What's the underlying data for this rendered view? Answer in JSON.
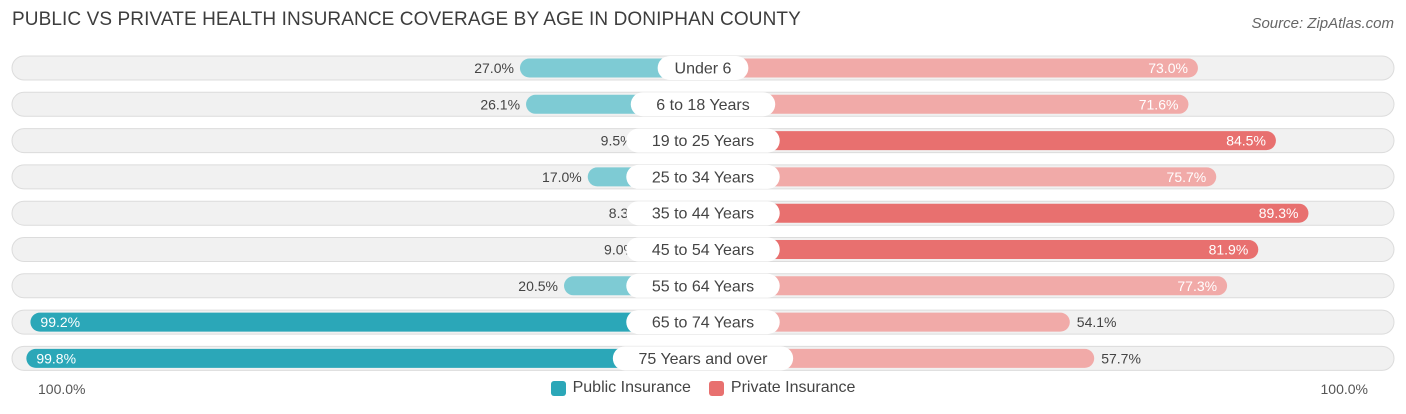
{
  "header": {
    "title": "PUBLIC VS PRIVATE HEALTH INSURANCE COVERAGE BY AGE IN DONIPHAN COUNTY",
    "source": "Source: ZipAtlas.com"
  },
  "colors": {
    "public": "#2ba7b8",
    "public_light": "#7ecbd4",
    "private": "#e8706f",
    "private_light": "#f1aaa8",
    "track": "#f1f1f1",
    "track_border": "#dcdcdc"
  },
  "chart_data": {
    "type": "bar",
    "orientation": "horizontal-diverging",
    "title": "PUBLIC VS PRIVATE HEALTH INSURANCE COVERAGE BY AGE IN DONIPHAN COUNTY",
    "categories": [
      "Under 6",
      "6 to 18 Years",
      "19 to 25 Years",
      "25 to 34 Years",
      "35 to 44 Years",
      "45 to 54 Years",
      "55 to 64 Years",
      "65 to 74 Years",
      "75 Years and over"
    ],
    "series": [
      {
        "name": "Public Insurance",
        "values": [
          27.0,
          26.1,
          9.5,
          17.0,
          8.3,
          9.0,
          20.5,
          99.2,
          99.8
        ],
        "labels": [
          "27.0%",
          "26.1%",
          "9.5%",
          "17.0%",
          "8.3%",
          "9.0%",
          "20.5%",
          "99.2%",
          "99.8%"
        ]
      },
      {
        "name": "Private Insurance",
        "values": [
          73.0,
          71.6,
          84.5,
          75.7,
          89.3,
          81.9,
          77.3,
          54.1,
          57.7
        ],
        "labels": [
          "73.0%",
          "71.6%",
          "84.5%",
          "75.7%",
          "89.3%",
          "81.9%",
          "77.3%",
          "54.1%",
          "57.7%"
        ]
      }
    ],
    "xlim": [
      -100,
      100
    ],
    "axis_left_label": "100.0%",
    "axis_right_label": "100.0%",
    "legend_position": "bottom-center"
  }
}
